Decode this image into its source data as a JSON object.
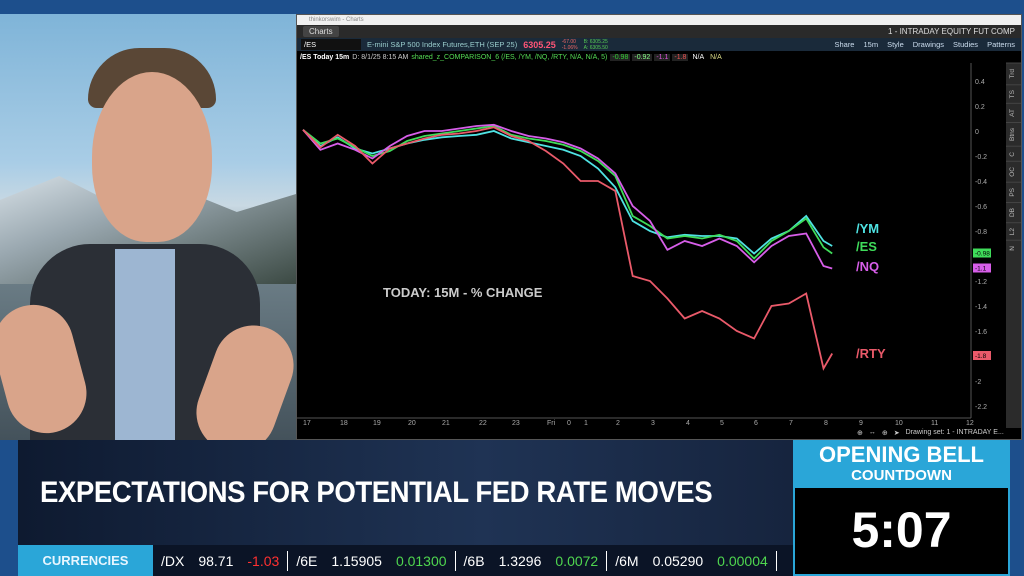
{
  "window": {
    "title": "thinkorswim - Charts",
    "tab": "Charts",
    "layout_name": "1 - INTRADAY EQUITY FUT COMP"
  },
  "symbol": {
    "value": "/ES",
    "description": "E-mini S&P 500 Index Futures,ETH (SEP 25)",
    "price": "6305.25",
    "change": "-67.00",
    "change_pct": "-1.06%",
    "bid": "B: 6305.25",
    "ask": "A: 6305.50"
  },
  "toolbar": [
    "Share",
    "15m",
    "Style",
    "Drawings",
    "Studies",
    "Patterns"
  ],
  "info": {
    "title": "/ES Today 15m",
    "date": "D: 8/1/25 8:15 AM",
    "study": "shared_z_COMPARISON_6 (/ES, /YM, /NQ, /RTY, N/A, N/A, 5)",
    "values": [
      "-0.98",
      "-0.92",
      "-1.1",
      "-1.8",
      "N/A",
      "N/A"
    ]
  },
  "side_tabs": [
    "Trd",
    "TS",
    "AT",
    "Btns",
    "C",
    "OC",
    "PS",
    "DB",
    "L2",
    "N"
  ],
  "footer": {
    "drawing_set": "Drawing set: 1 - INTRADAY E..."
  },
  "chart_data": {
    "type": "line",
    "annotation": "TODAY: 15M - % CHANGE",
    "ylim": [
      -2.3,
      0.5
    ],
    "yticks": [
      "0.4",
      "0.2",
      "0",
      "-0.2",
      "-0.4",
      "-0.6",
      "-0.8",
      "-1.2",
      "-1.4",
      "-1.6",
      "-2",
      "-2.2"
    ],
    "xticks": [
      "17",
      "18",
      "19",
      "20",
      "21",
      "22",
      "23",
      "Fri",
      "0",
      "1",
      "2",
      "3",
      "4",
      "5",
      "6",
      "7",
      "8",
      "9",
      "10",
      "11",
      "12"
    ],
    "x": [
      "17:00",
      "17:30",
      "18:00",
      "18:30",
      "19:00",
      "19:30",
      "20:00",
      "20:30",
      "21:00",
      "21:30",
      "22:00",
      "22:30",
      "23:00",
      "23:30",
      "00:00",
      "00:30",
      "01:00",
      "01:30",
      "02:00",
      "02:30",
      "03:00",
      "03:30",
      "04:00",
      "04:30",
      "05:00",
      "05:30",
      "06:00",
      "06:30",
      "07:00",
      "07:30",
      "08:00",
      "08:15"
    ],
    "series": [
      {
        "name": "/YM",
        "color": "#4fe3e3",
        "last": "-0.92",
        "values": [
          0.01,
          -0.12,
          -0.05,
          -0.14,
          -0.18,
          -0.14,
          -0.1,
          -0.07,
          -0.05,
          -0.04,
          -0.03,
          0.0,
          -0.06,
          -0.09,
          -0.12,
          -0.15,
          -0.2,
          -0.3,
          -0.45,
          -0.72,
          -0.8,
          -0.85,
          -0.83,
          -0.84,
          -0.84,
          -0.86,
          -0.98,
          -0.86,
          -0.8,
          -0.68,
          -0.88,
          -0.92
        ]
      },
      {
        "name": "/ES",
        "color": "#3fdc5a",
        "last": "-0.98",
        "values": [
          0.01,
          -0.1,
          -0.06,
          -0.13,
          -0.2,
          -0.16,
          -0.08,
          -0.04,
          -0.02,
          0.0,
          0.02,
          0.04,
          -0.03,
          -0.06,
          -0.08,
          -0.11,
          -0.16,
          -0.24,
          -0.36,
          -0.68,
          -0.76,
          -0.86,
          -0.84,
          -0.86,
          -0.83,
          -0.88,
          -1.02,
          -0.88,
          -0.8,
          -0.7,
          -0.93,
          -0.98
        ]
      },
      {
        "name": "/NQ",
        "color": "#d75ee9",
        "last": "-1.1",
        "values": [
          0.01,
          -0.15,
          -0.1,
          -0.15,
          -0.22,
          -0.12,
          -0.04,
          0.0,
          0.0,
          0.02,
          0.04,
          0.05,
          0.0,
          -0.04,
          -0.06,
          -0.09,
          -0.14,
          -0.22,
          -0.34,
          -0.6,
          -0.72,
          -0.95,
          -0.88,
          -0.92,
          -0.86,
          -0.92,
          -1.05,
          -0.92,
          -0.84,
          -0.82,
          -1.08,
          -1.1
        ]
      },
      {
        "name": "/RTY",
        "color": "#ea5a6a",
        "last": "-1.8",
        "values": [
          0.01,
          -0.13,
          -0.03,
          -0.12,
          -0.26,
          -0.14,
          -0.1,
          -0.06,
          -0.03,
          -0.02,
          0.0,
          0.03,
          -0.04,
          -0.08,
          -0.16,
          -0.26,
          -0.4,
          -0.4,
          -0.48,
          -1.16,
          -1.2,
          -1.34,
          -1.5,
          -1.44,
          -1.5,
          -1.6,
          -1.66,
          -1.4,
          -1.38,
          -1.3,
          -1.9,
          -1.78
        ]
      }
    ]
  },
  "broadcast": {
    "headline": "EXPECTATIONS FOR POTENTIAL FED RATE MOVES",
    "countdown_title": "OPENING BELL",
    "countdown_sub": "COUNTDOWN",
    "countdown": "5:07",
    "ticker_label": "CURRENCIES",
    "ticker": [
      {
        "sym": "/DX",
        "price": "98.71",
        "chg": "-1.03",
        "dir": "down"
      },
      {
        "sym": "/6E",
        "price": "1.15905",
        "chg": "0.01300",
        "dir": "up"
      },
      {
        "sym": "/6B",
        "price": "1.3296",
        "chg": "0.0072",
        "dir": "up"
      },
      {
        "sym": "/6M",
        "price": "0.05290",
        "chg": "0.00004",
        "dir": "up"
      }
    ]
  }
}
